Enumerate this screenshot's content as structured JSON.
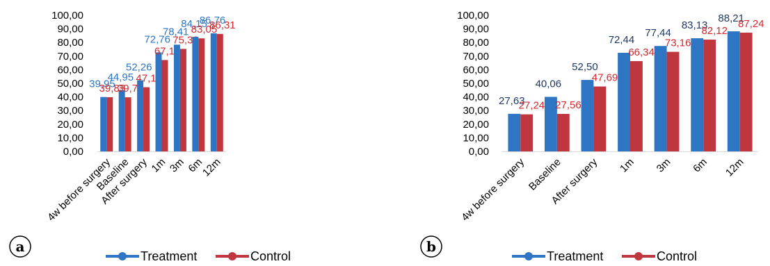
{
  "panels": [
    {
      "letter": "a"
    },
    {
      "letter": "b"
    }
  ],
  "legend": [
    {
      "label": "Treatment",
      "color": "#2e75c4"
    },
    {
      "label": "Control",
      "color": "#c0363f"
    }
  ],
  "chart_data": [
    {
      "type": "bar",
      "categories": [
        "4w before surgery",
        "Baseline",
        "After surgery",
        "1m",
        "3m",
        "6m",
        "12m"
      ],
      "y_tick_labels": [
        "0,00",
        "10,00",
        "20,00",
        "30,00",
        "40,00",
        "50,00",
        "60,00",
        "70,00",
        "80,00",
        "90,00",
        "100,00"
      ],
      "ylim": [
        0,
        100
      ],
      "series": [
        {
          "name": "Treatment",
          "color": "#2e75c4",
          "label_color": "#2e75c4",
          "values": [
            39.95,
            44.95,
            52.26,
            72.76,
            78.41,
            84.15,
            86.76
          ],
          "labels": [
            "39,95",
            "44,95",
            "52,26",
            "72,76",
            "78,41",
            "84,15",
            "86,76"
          ]
        },
        {
          "name": "Control",
          "color": "#c0363f",
          "label_color": "#d0292f",
          "values": [
            39.83,
            39.74,
            47.15,
            67.12,
            75.32,
            83.05,
            86.31
          ],
          "labels": [
            "39,83",
            "39,74",
            "47,15",
            "67,12",
            "75,32",
            "83,05",
            "86,31"
          ]
        }
      ]
    },
    {
      "type": "bar",
      "categories": [
        "4w before surgery",
        "Baseline",
        "After surgery",
        "1m",
        "3m",
        "6m",
        "12m"
      ],
      "y_tick_labels": [
        "0,00",
        "10,00",
        "20,00",
        "30,00",
        "40,00",
        "50,00",
        "60,00",
        "70,00",
        "80,00",
        "90,00",
        "100,00"
      ],
      "ylim": [
        0,
        100
      ],
      "series": [
        {
          "name": "Treatment",
          "color": "#2e75c4",
          "label_color": "#1f3864",
          "values": [
            27.63,
            40.06,
            52.5,
            72.44,
            77.44,
            83.13,
            88.21
          ],
          "labels": [
            "27,63",
            "40,06",
            "52,50",
            "72,44",
            "77,44",
            "83,13",
            "88,21"
          ]
        },
        {
          "name": "Control",
          "color": "#c0363f",
          "label_color": "#d0292f",
          "values": [
            27.24,
            27.56,
            47.69,
            66.34,
            73.16,
            82.12,
            87.24
          ],
          "labels": [
            "27,24",
            "27,56",
            "47,69",
            "66,34",
            "73,16",
            "82,12",
            "87,24"
          ]
        }
      ]
    }
  ]
}
